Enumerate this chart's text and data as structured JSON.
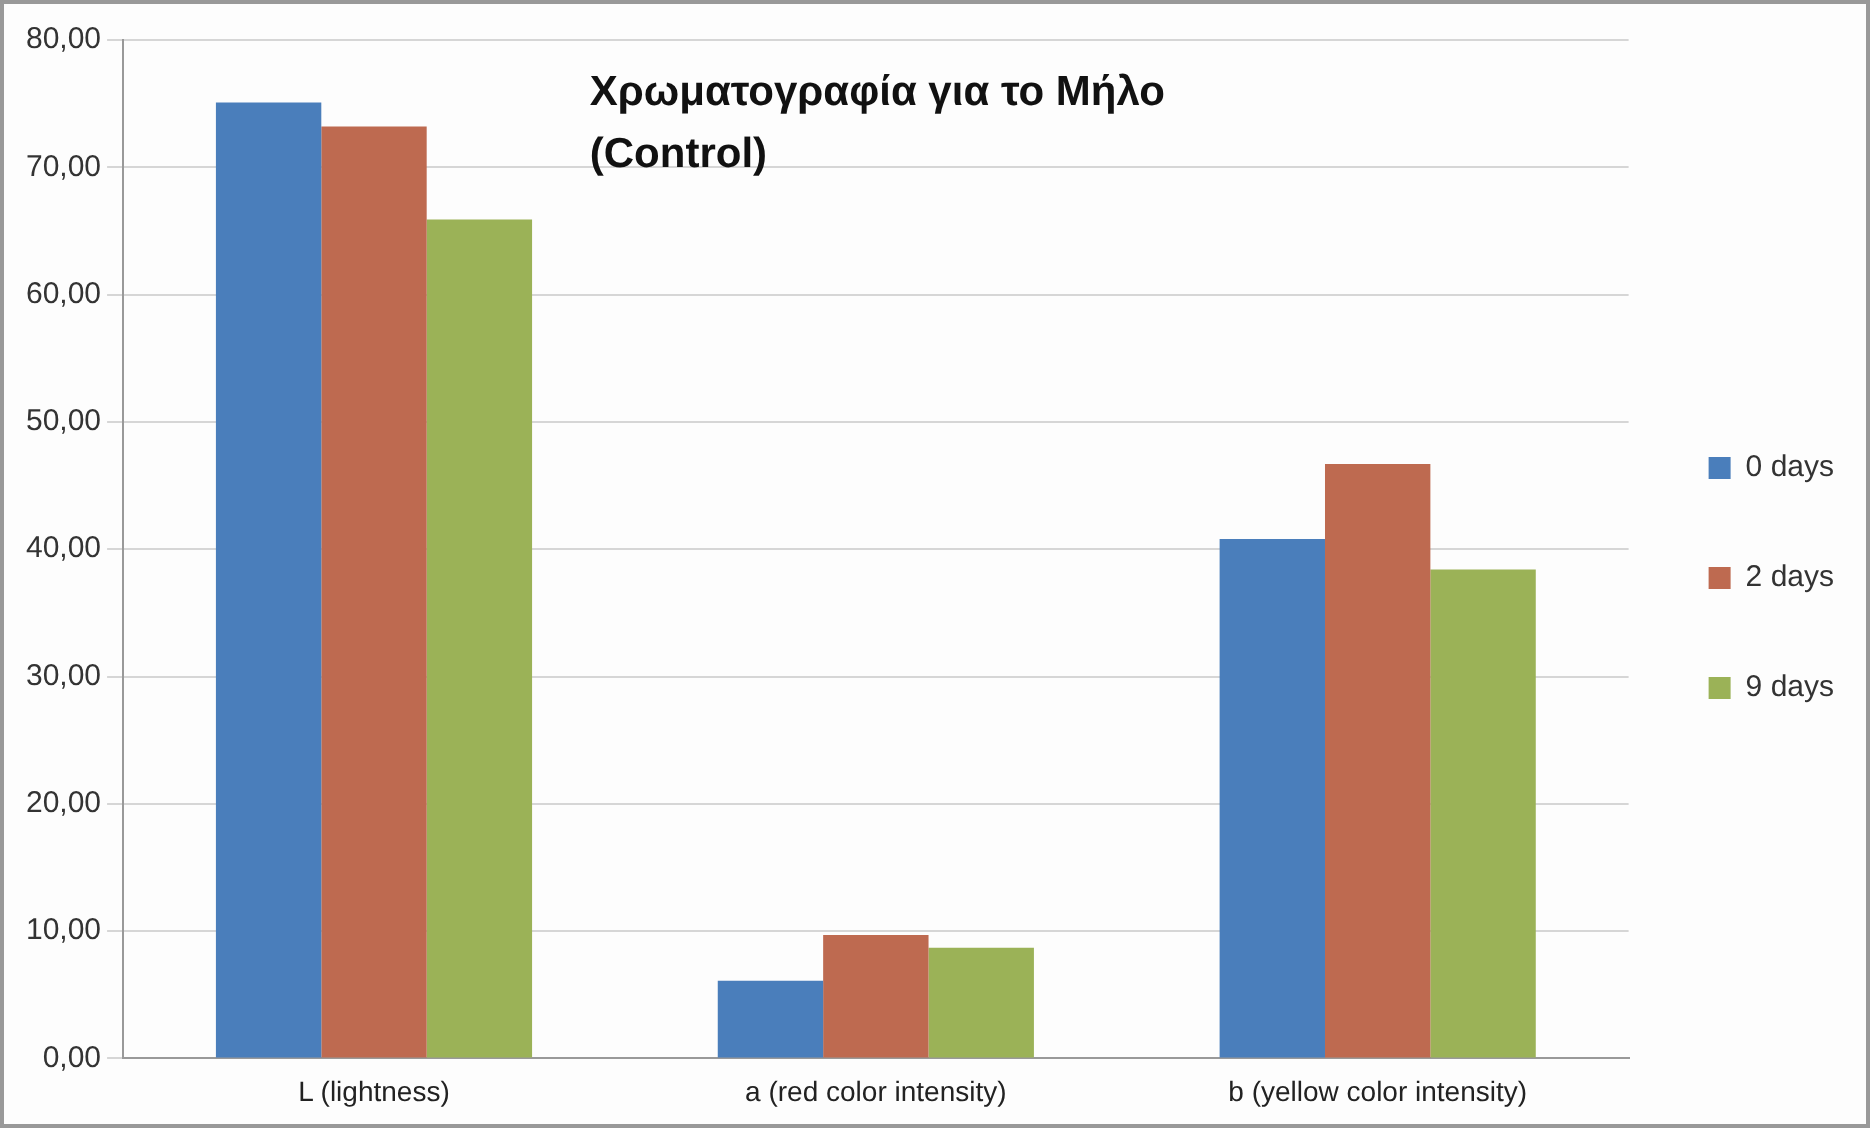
{
  "chart_data": {
    "type": "bar",
    "title": "Χρωματογραφία για το Μήλο (Control)",
    "categories": [
      "L (lightness)",
      "a (red color intensity)",
      "b (yellow color intensity)"
    ],
    "series": [
      {
        "name": "0 days",
        "color": "#4a7ebb",
        "values": [
          75.1,
          6.1,
          40.8
        ]
      },
      {
        "name": "2 days",
        "color": "#be6a50",
        "values": [
          73.2,
          9.7,
          46.7
        ]
      },
      {
        "name": "9 days",
        "color": "#9bb257",
        "values": [
          65.9,
          8.7,
          38.4
        ]
      }
    ],
    "ylim": [
      0,
      80
    ],
    "yticks": [
      {
        "value": 0,
        "label": "0,00"
      },
      {
        "value": 10,
        "label": "10,00"
      },
      {
        "value": 20,
        "label": "20,00"
      },
      {
        "value": 30,
        "label": "30,00"
      },
      {
        "value": 40,
        "label": "40,00"
      },
      {
        "value": 50,
        "label": "50,00"
      },
      {
        "value": 60,
        "label": "60,00"
      },
      {
        "value": 70,
        "label": "70,00"
      },
      {
        "value": 80,
        "label": "80,00"
      }
    ],
    "grid": "y",
    "legend": "right"
  }
}
